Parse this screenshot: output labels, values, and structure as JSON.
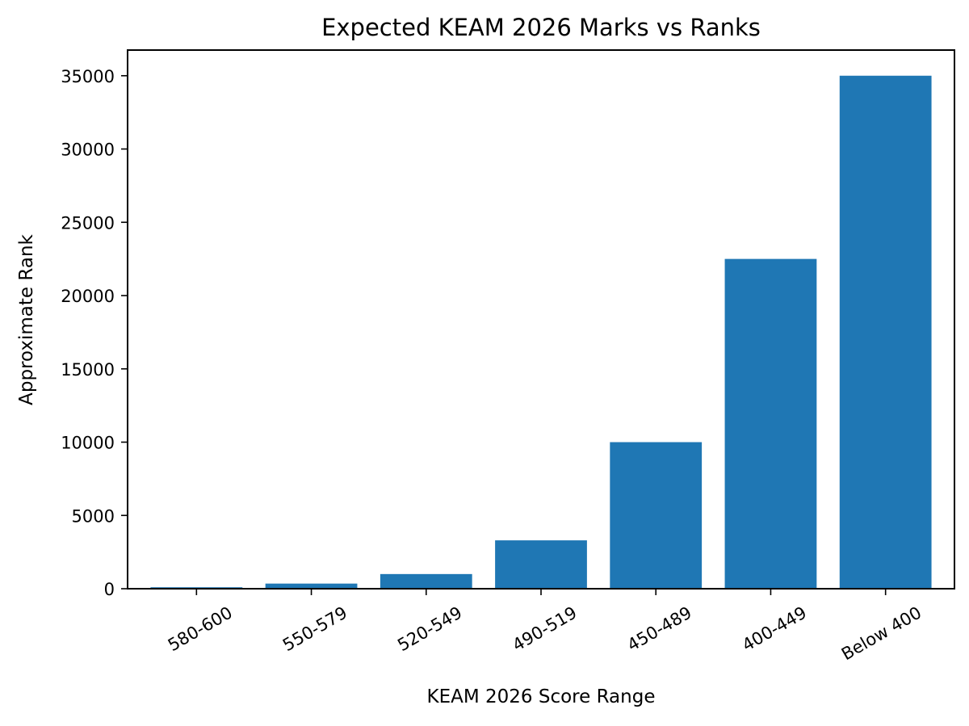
{
  "chart_data": {
    "type": "bar",
    "title": "Expected KEAM 2026 Marks vs Ranks",
    "xlabel": "KEAM 2026 Score Range",
    "ylabel": "Approximate Rank",
    "categories": [
      "580-600",
      "550-579",
      "520-549",
      "490-519",
      "450-489",
      "400-449",
      "Below 400"
    ],
    "values": [
      100,
      350,
      1000,
      3300,
      10000,
      22500,
      35000
    ],
    "ylim": [
      0,
      36750
    ],
    "yticks": [
      0,
      5000,
      10000,
      15000,
      20000,
      25000,
      30000,
      35000
    ],
    "grid": false,
    "legend": null,
    "bar_color": "#1f77b4",
    "xtick_rotation": -30
  }
}
